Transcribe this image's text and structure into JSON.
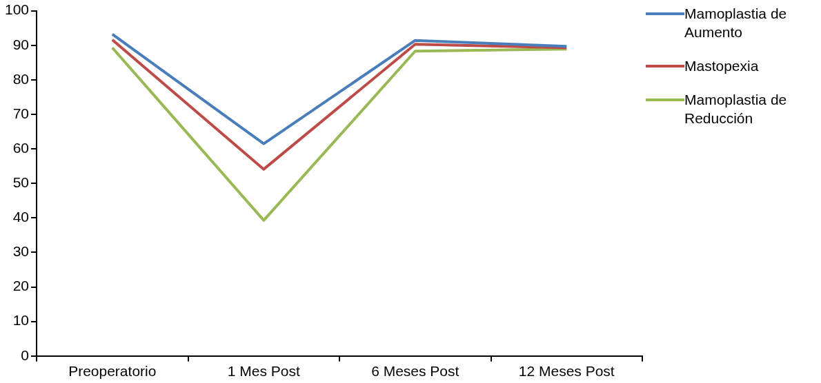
{
  "chart_data": {
    "type": "line",
    "categories": [
      "Preoperatorio",
      "1 Mes Post",
      "6 Meses Post",
      "12 Meses Post"
    ],
    "series": [
      {
        "name": "Mamoplastia de Aumento",
        "color": "#4a7ebb",
        "values": [
          93.2,
          61.5,
          91.4,
          89.7
        ]
      },
      {
        "name": "Mastopexia",
        "color": "#be4b48",
        "values": [
          91.6,
          54.1,
          90.3,
          89.3
        ]
      },
      {
        "name": "Mamoplastia de Reducción",
        "color": "#98b954",
        "values": [
          89.3,
          39.3,
          88.3,
          88.9
        ]
      }
    ],
    "ylim": [
      0,
      100
    ],
    "yticks": [
      0,
      10,
      20,
      30,
      40,
      50,
      60,
      70,
      80,
      90,
      100
    ],
    "grid": false,
    "legend": "right",
    "marker": "none",
    "line_style": "solid"
  }
}
